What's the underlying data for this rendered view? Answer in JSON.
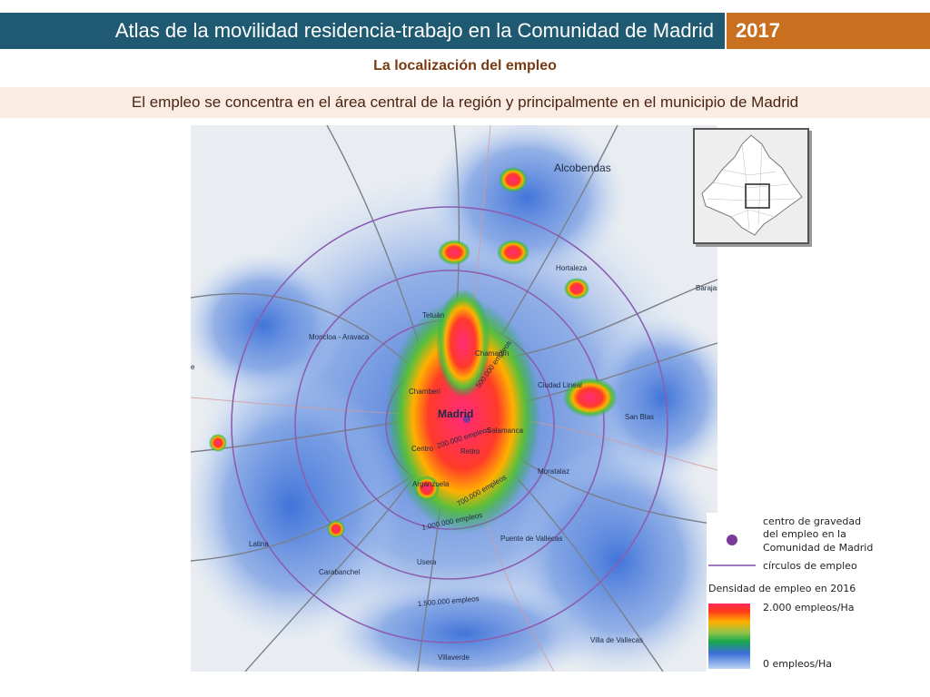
{
  "header": {
    "title": "Atlas de la movilidad residencia-trabajo en la Comunidad de Madrid",
    "year": "2017"
  },
  "subtitle": "La localización del empleo",
  "headline": "El empleo se concentra en el área central de la región y principalmente en el municipio de Madrid",
  "map": {
    "place_labels": [
      "Alcobendas",
      "Hortaleza",
      "Barajas",
      "Tetuán",
      "Chamartín",
      "Moncloa - Aravaca",
      "Ciudad Lineal",
      "Chamberí",
      "Madrid",
      "San Blas",
      "Salamanca",
      "Centro",
      "Retiro",
      "Arganzuela",
      "Moratalaz",
      "Latina",
      "Puente de Vallecas",
      "Carabanchel",
      "Usera",
      "Villa de Vallecas",
      "Villaverde",
      "e"
    ],
    "circle_labels": [
      "500.000 empleos",
      "200.000 empleos",
      "700.000 empleos",
      "1.000.000 empleos",
      "1.500.000 empleos"
    ],
    "colors": {
      "low": "#bcd3f5",
      "mid_low": "#3a6fd8",
      "mid": "#1aa84a",
      "high": "#ffb000",
      "very_high": "#ff2a5a",
      "circle": "#8a5fb0"
    }
  },
  "legend": {
    "centroid_label_1": "centro de gravedad",
    "centroid_label_2": "del empleo en la",
    "centroid_label_3": "Comunidad de Madrid",
    "circles_label": "círculos de empleo",
    "density_title": "Densidad de empleo en 2016",
    "max_label": "2.000 empleos/Ha",
    "min_label": "0 empleos/Ha"
  }
}
